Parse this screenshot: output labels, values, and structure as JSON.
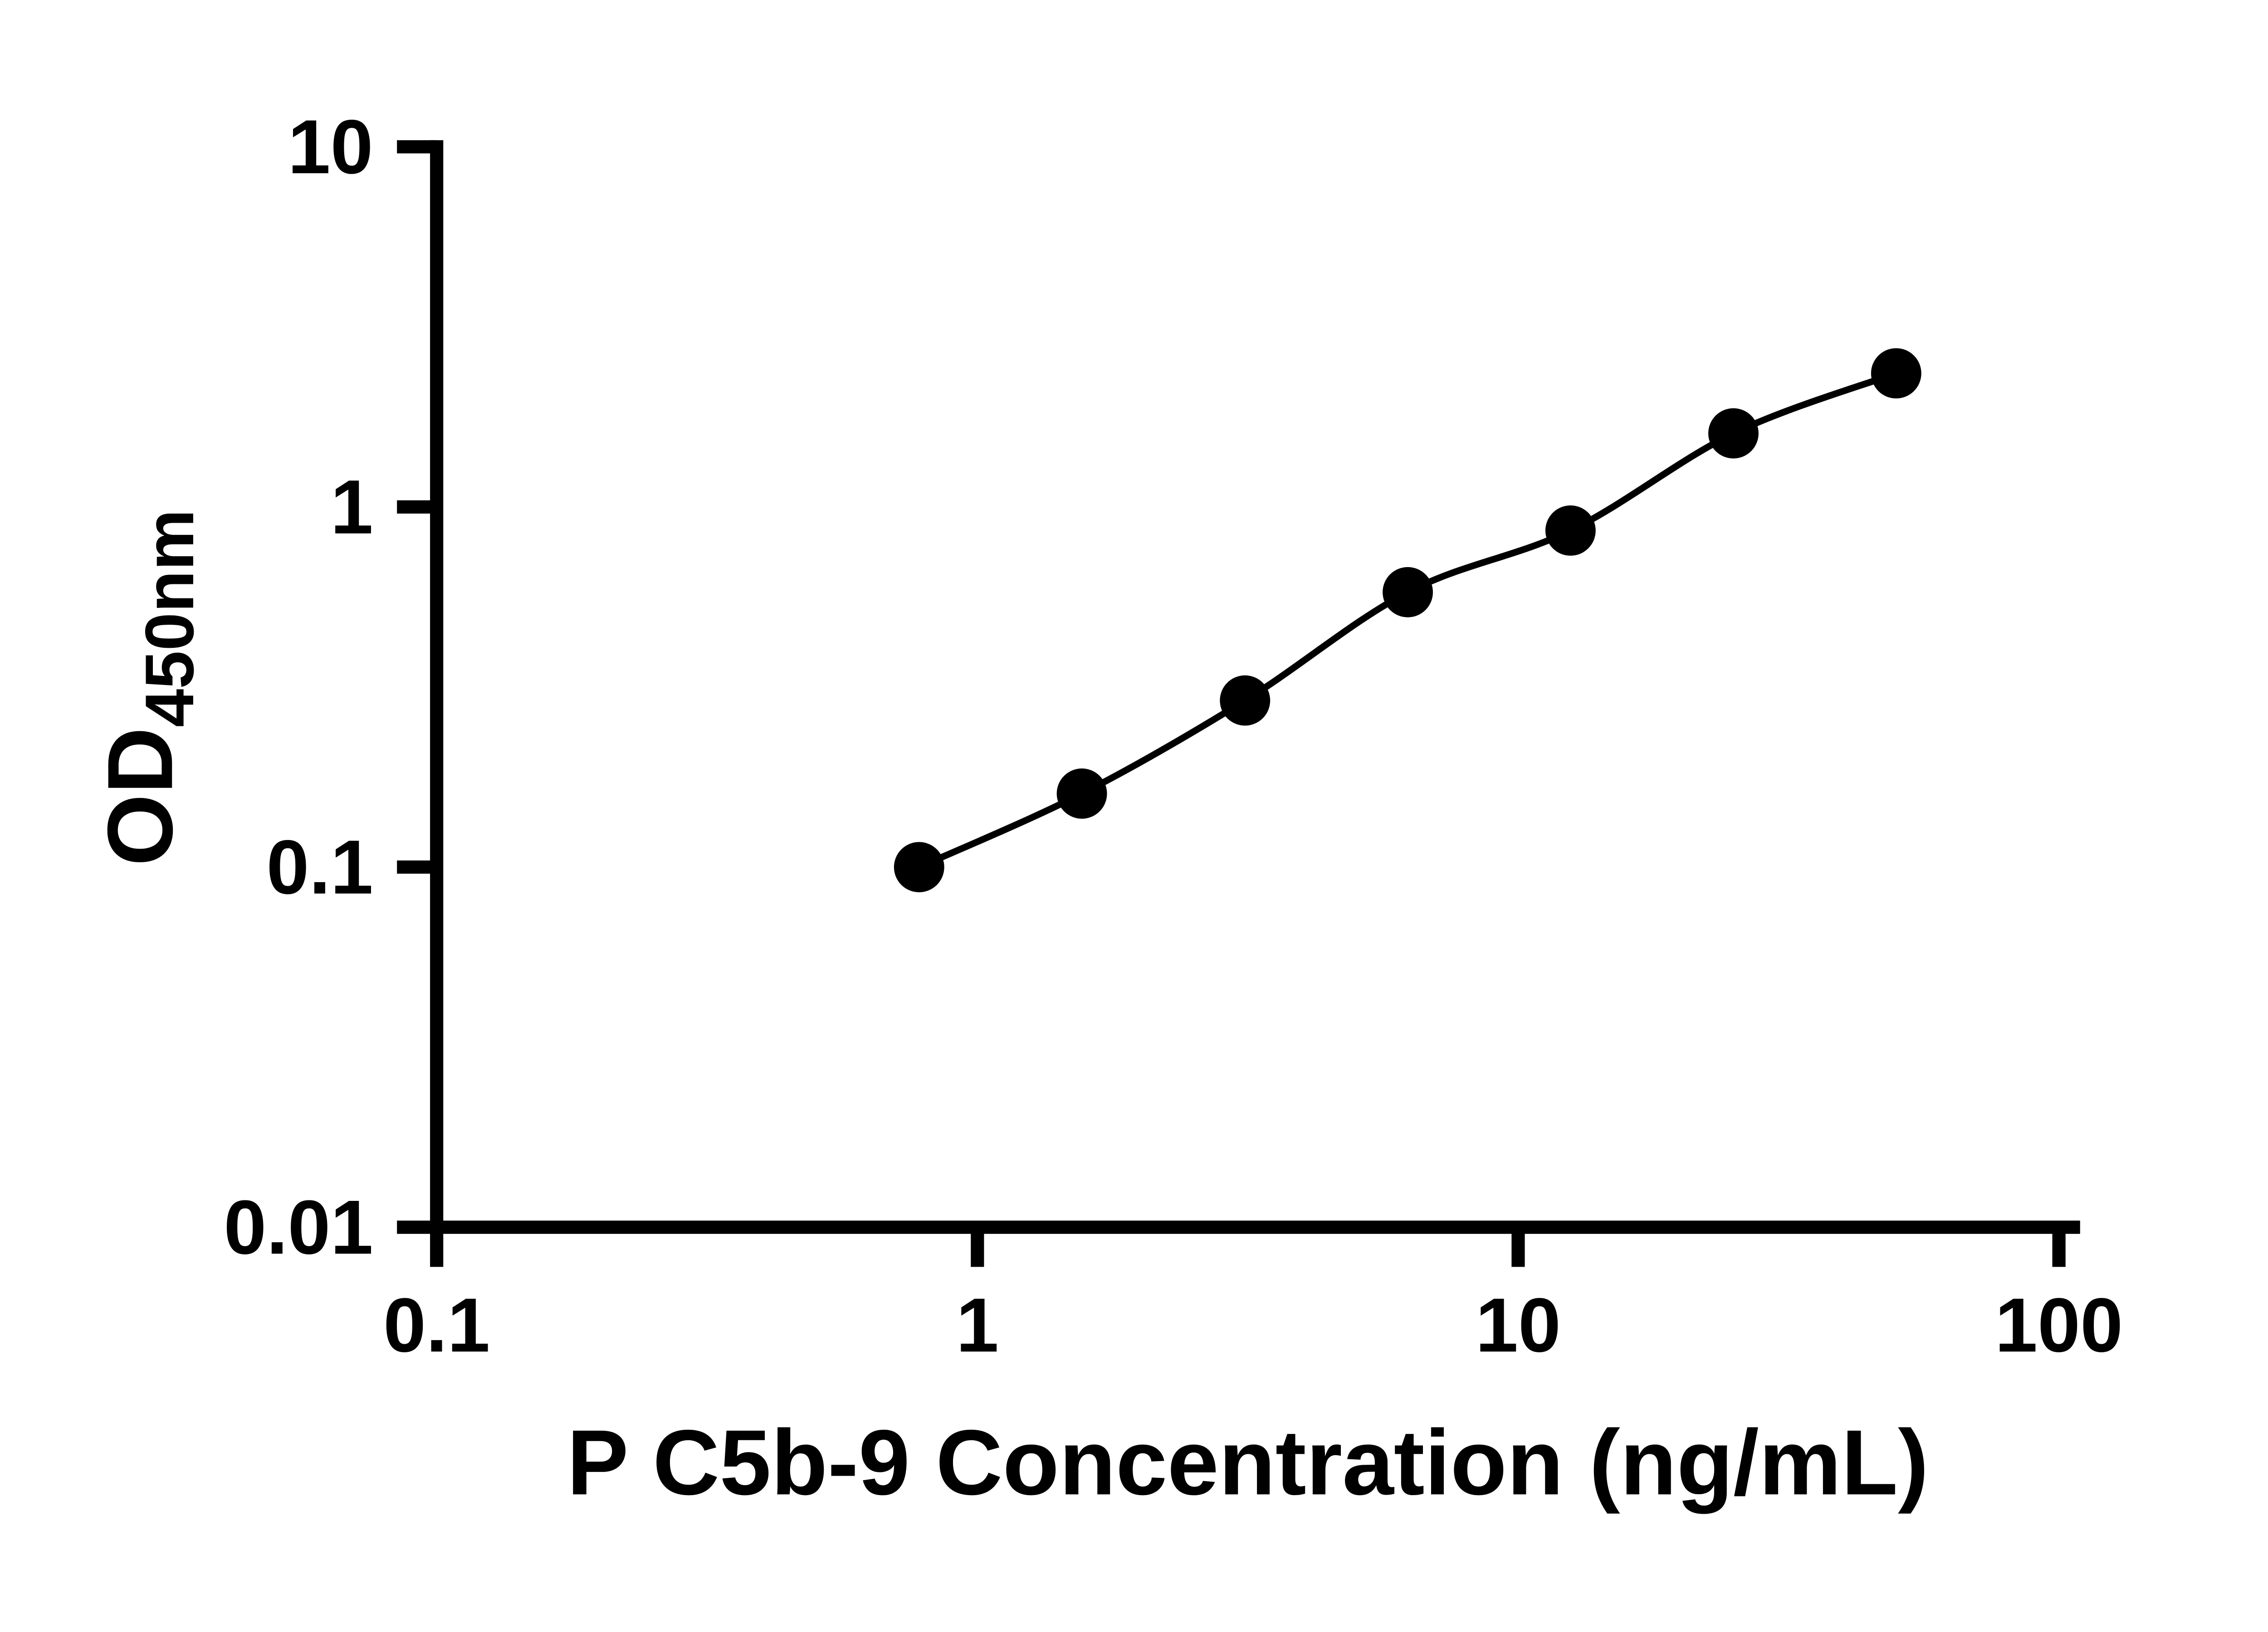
{
  "figure": {
    "background_color": "#ffffff",
    "ink_color": "#000000"
  },
  "chart_data": {
    "type": "scatter",
    "subtype": "standard-curve-with-fit-line",
    "title": "",
    "xlabel": "P C5b-9 Concentration (ng/mL)",
    "ylabel_main": "OD",
    "ylabel_sub": "450nm",
    "x_scale": "log10",
    "y_scale": "log10",
    "xlim": [
      0.1,
      100
    ],
    "ylim": [
      0.01,
      10
    ],
    "x_ticks": [
      0.1,
      1,
      10,
      100
    ],
    "x_tick_labels": [
      "0.1",
      "1",
      "10",
      "100"
    ],
    "y_ticks": [
      0.01,
      0.1,
      1,
      10
    ],
    "y_tick_labels": [
      "0.01",
      "0.1",
      "1",
      "10"
    ],
    "grid": false,
    "legend": "none",
    "series": [
      {
        "marker": "filled-circle",
        "line": "solid",
        "color": "#000000",
        "points": [
          {
            "x": 0.78,
            "y": 0.1
          },
          {
            "x": 1.56,
            "y": 0.16
          },
          {
            "x": 3.125,
            "y": 0.29
          },
          {
            "x": 6.25,
            "y": 0.58
          },
          {
            "x": 12.5,
            "y": 0.86
          },
          {
            "x": 25,
            "y": 1.6
          },
          {
            "x": 50,
            "y": 2.35
          }
        ]
      }
    ]
  }
}
